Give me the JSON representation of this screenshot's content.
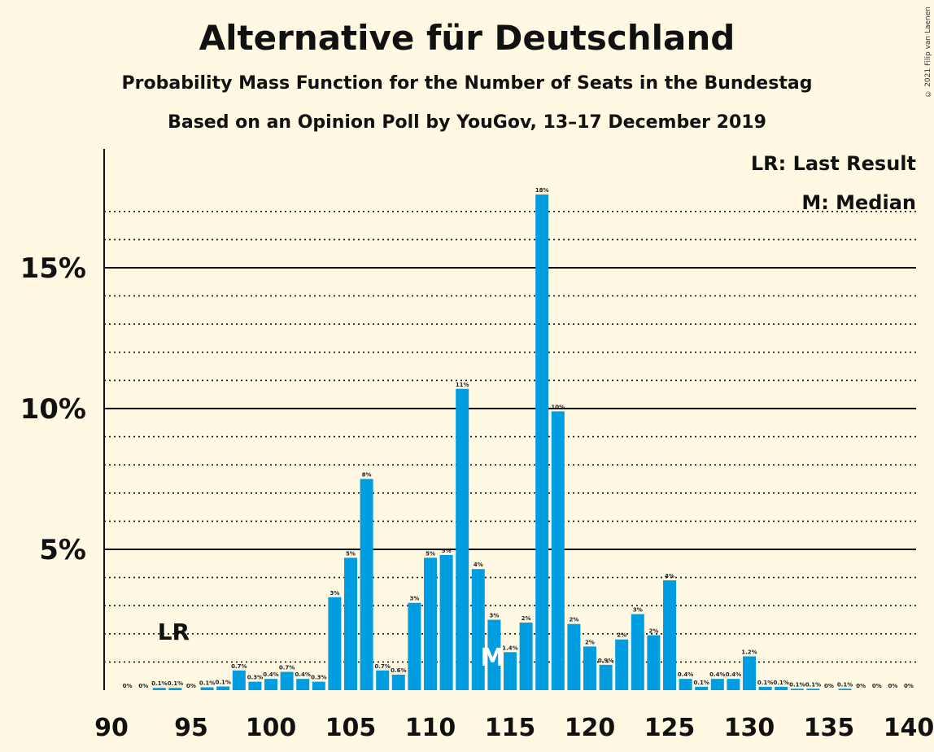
{
  "chart_data": {
    "type": "bar",
    "title": "Alternative für Deutschland",
    "subtitle": "Probability Mass Function for the Number of Seats in the Bundestag",
    "subtitle2": "Based on an Opinion Poll by YouGov, 13–17 December 2019",
    "copyright": "© 2021 Filip van Laenen",
    "legend": {
      "lr": "LR: Last Result",
      "median": "M: Median",
      "placement": "top-right"
    },
    "markers": {
      "lr_label": "LR",
      "lr_seat": 94,
      "median_label": "M",
      "median_seat": 114
    },
    "xlim": [
      90,
      140
    ],
    "ylim": [
      0,
      19
    ],
    "bar_color": "#009de0",
    "x_ticks": [
      90,
      95,
      100,
      105,
      110,
      115,
      120,
      125,
      130,
      135,
      140
    ],
    "y_ticks": [
      {
        "value": 5,
        "label": "5%"
      },
      {
        "value": 10,
        "label": "10%"
      },
      {
        "value": 15,
        "label": "15%"
      }
    ],
    "seats": [
      91,
      92,
      93,
      94,
      95,
      96,
      97,
      98,
      99,
      100,
      101,
      102,
      103,
      104,
      105,
      106,
      107,
      108,
      109,
      110,
      111,
      112,
      113,
      114,
      115,
      116,
      117,
      118,
      119,
      120,
      121,
      122,
      123,
      124,
      125,
      126,
      127,
      128,
      129,
      130,
      131,
      132,
      133,
      134,
      135,
      136,
      137,
      138,
      139
    ],
    "values": [
      0,
      0,
      0.08,
      0.08,
      0,
      0.1,
      0.13,
      0.7,
      0.3,
      0.4,
      0.65,
      0.4,
      0.3,
      3.3,
      4.7,
      7.5,
      0.7,
      0.55,
      3.1,
      4.7,
      4.8,
      10.7,
      4.3,
      2.5,
      1.35,
      2.4,
      17.6,
      9.9,
      2.35,
      1.55,
      0.9,
      1.8,
      2.7,
      1.95,
      3.9,
      0.4,
      0.12,
      0.4,
      0.4,
      1.2,
      0.12,
      0.12,
      0.05,
      0.05,
      0,
      0.05,
      0,
      0,
      0
    ],
    "labels": [
      "0%",
      "0%",
      "0.1%",
      "0.1%",
      "0%",
      "0.1%",
      "0.1%",
      "0.7%",
      "0.3%",
      "0.4%",
      "0.7%",
      "0.4%",
      "0.3%",
      "3%",
      "5%",
      "8%",
      "0.7%",
      "0.6%",
      "3%",
      "5%",
      "5%",
      "11%",
      "4%",
      "3%",
      "1.4%",
      "2%",
      "18%",
      "10%",
      "2%",
      "2%",
      "0.9%",
      "2%",
      "3%",
      "2%",
      "4%",
      "0.4%",
      "0.1%",
      "0.4%",
      "0.4%",
      "1.2%",
      "0.1%",
      "0.1%",
      "0.1%",
      "0.1%",
      "0%",
      "0.1%",
      "0%",
      "0%",
      "0%"
    ],
    "extra_zero_label": {
      "seat": 140,
      "label": "0%"
    }
  }
}
